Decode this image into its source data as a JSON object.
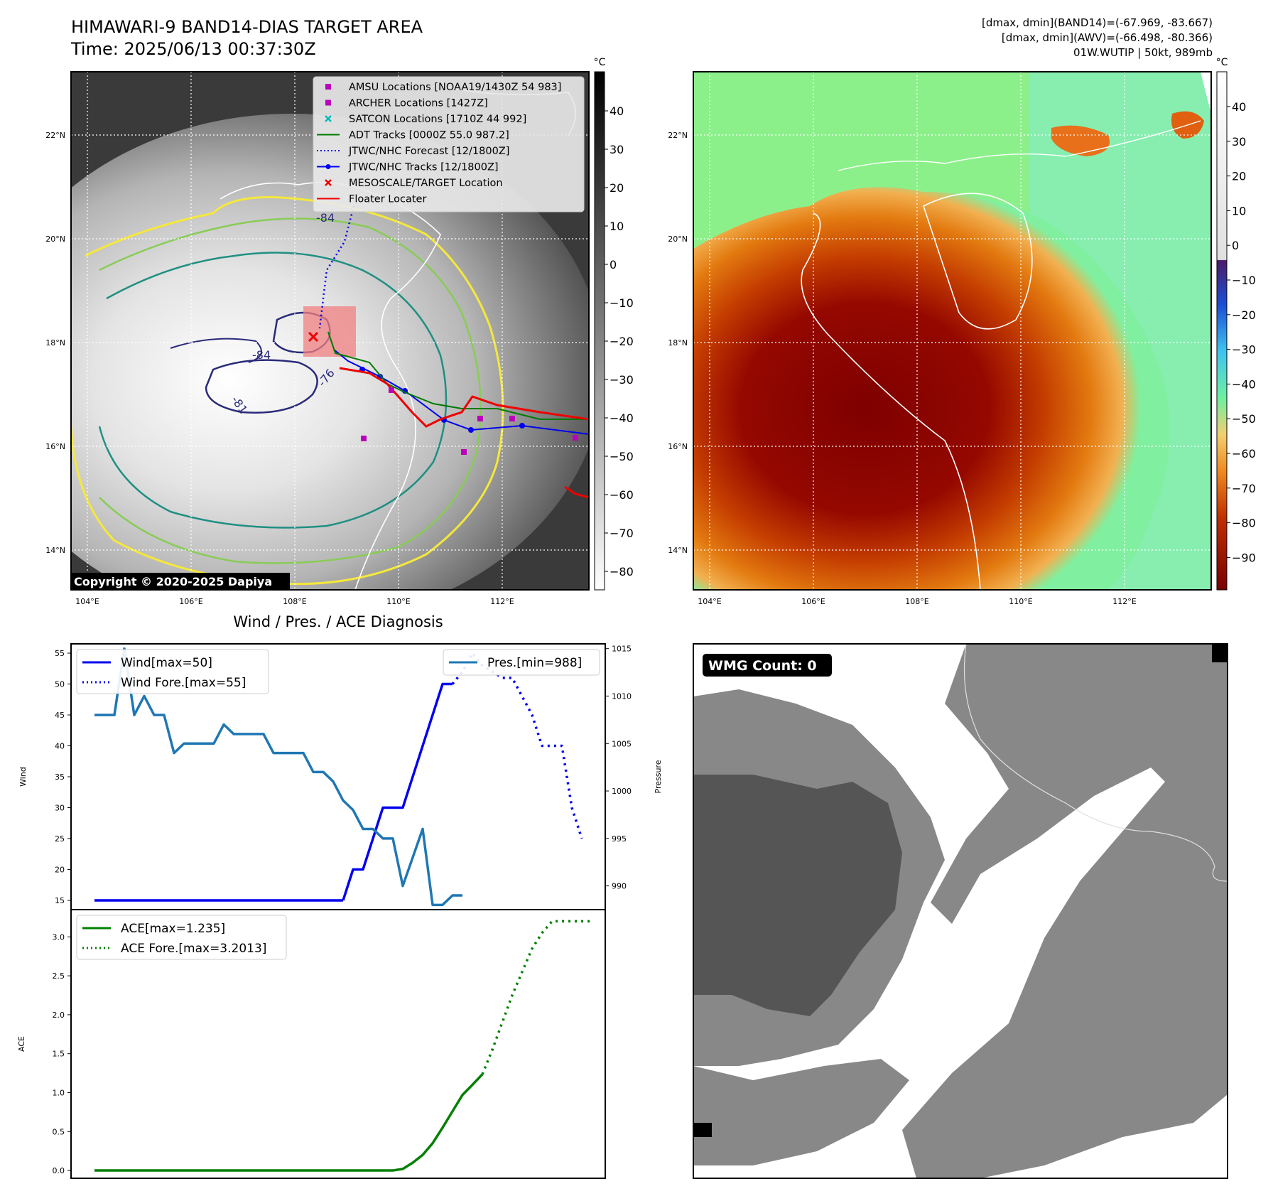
{
  "header": {
    "title_line1": "HIMAWARI-9 BAND14-DIAS TARGET AREA",
    "title_line2": "Time: 2025/06/13 00:37:30Z",
    "info_line1": "[dmax, dmin](BAND14)=(-67.969, -83.667)",
    "info_line2": "[dmax, dmin](AWV)=(-66.498, -80.366)",
    "info_line3": "01W.WUTIP | 50kt, 989mb"
  },
  "colors": {
    "contour_yellow": "#f5e83a",
    "contour_lightgreen": "#88cc55",
    "contour_teal": "#1f8f82",
    "contour_navy": "#2a2a7a",
    "track_blue": "#0000ee",
    "adt_green": "#007a00",
    "floater_red": "#ee0000",
    "amsu_magenta": "#bb00bb",
    "satcon_cyan": "#00bbbb",
    "pres_line": "#1f77b4",
    "ace_line": "#008000",
    "wmg_dark": "#555555",
    "wmg_mid": "#888888"
  },
  "map": {
    "lon_ticks": [
      "104°E",
      "106°E",
      "108°E",
      "110°E",
      "112°E"
    ],
    "lat_ticks": [
      "22°N",
      "20°N",
      "18°N",
      "16°N",
      "14°N"
    ],
    "copyright": "Copyright © 2020-2025 Dapiya",
    "contour_labels": [
      "-84",
      "-81",
      "-76",
      "-84"
    ],
    "legend": [
      {
        "label": "AMSU Locations [NOAA19/1430Z 54 983]",
        "marker": "square",
        "color": "#bb00bb"
      },
      {
        "label": "ARCHER Locations [1427Z]",
        "marker": "square",
        "color": "#bb00bb"
      },
      {
        "label": "SATCON Locations [1710Z 44 992]",
        "marker": "x",
        "color": "#00bbbb"
      },
      {
        "label": "ADT Tracks [0000Z 55.0 987.2]",
        "marker": "line",
        "color": "#007a00"
      },
      {
        "label": "JTWC/NHC Forecast [12/1800Z]",
        "marker": "dotted",
        "color": "#0000ee"
      },
      {
        "label": "JTWC/NHC Tracks [12/1800Z]",
        "marker": "line-dot",
        "color": "#0000ee"
      },
      {
        "label": "MESOSCALE/TARGET Location",
        "marker": "x",
        "color": "#ee0000"
      },
      {
        "label": "Floater Locater",
        "marker": "line",
        "color": "#ee0000"
      }
    ]
  },
  "colorbars": {
    "unit": "°C",
    "ir_ticks": [
      "40",
      "30",
      "20",
      "10",
      "0",
      "−10",
      "−20",
      "−30",
      "−40",
      "−50",
      "−60",
      "−70",
      "−80"
    ],
    "awv_ticks": [
      "40",
      "30",
      "20",
      "10",
      "0",
      "−10",
      "−20",
      "−30",
      "−40",
      "−50",
      "−60",
      "−70",
      "−80",
      "−90"
    ]
  },
  "wmg": {
    "label": "WMG Count: 0"
  },
  "chart_data": [
    {
      "type": "line",
      "title": "Wind / Pres. / ACE Diagnosis",
      "ylabel": "Wind",
      "ylabel_right": "Pressure",
      "ylim": [
        13.5,
        56.5
      ],
      "ylim_right": [
        987.5,
        1015.5
      ],
      "yticks": [
        "15",
        "20",
        "25",
        "30",
        "35",
        "40",
        "45",
        "50",
        "55"
      ],
      "yticks_right": [
        "990",
        "995",
        "1000",
        "1005",
        "1010",
        "1015"
      ],
      "series": [
        {
          "name": "Wind[max=50]",
          "axis": "left",
          "style": "solid",
          "color": "#0000ee",
          "x": [
            0,
            1,
            2,
            3,
            4,
            5,
            6,
            7,
            8,
            9,
            10,
            11,
            12,
            13,
            14,
            15,
            16,
            17,
            18,
            19,
            20,
            21,
            22,
            23,
            24,
            25
          ],
          "y": [
            15,
            15,
            15,
            15,
            15,
            15,
            15,
            15,
            15,
            15,
            15,
            15,
            15,
            15,
            15,
            15,
            15,
            15,
            15,
            15,
            15,
            15,
            15,
            15,
            15,
            15
          ]
        },
        {
          "name": "Wind[max=50]",
          "axis": "left",
          "style": "solid",
          "color": "#0000ee",
          "x": [
            25,
            26,
            27,
            28,
            29,
            30,
            31,
            32,
            33,
            34,
            35,
            36
          ],
          "y": [
            15,
            20,
            20,
            25,
            30,
            30,
            30,
            35,
            40,
            45,
            50,
            50
          ]
        },
        {
          "name": "Wind Fore.[max=55]",
          "axis": "left",
          "style": "dotted",
          "color": "#0000ee",
          "x": [
            36,
            37,
            38,
            39,
            40,
            41,
            42,
            43,
            44,
            45,
            46,
            47,
            48,
            49
          ],
          "y": [
            50,
            52,
            55,
            53,
            52,
            51,
            51,
            48,
            45,
            40,
            40,
            40,
            30,
            25
          ]
        },
        {
          "name": "Pres.[min=988]",
          "axis": "right",
          "style": "solid",
          "color": "#1f77b4",
          "x": [
            0,
            1,
            2,
            3,
            4,
            5,
            6,
            7,
            8,
            9,
            10,
            11,
            12,
            13,
            14,
            15,
            16,
            17,
            18,
            19,
            20,
            21,
            22,
            23,
            24,
            25,
            26,
            27,
            28,
            29,
            30,
            31,
            32,
            33,
            34,
            35,
            36,
            37
          ],
          "y": [
            1008,
            1008,
            1008,
            1015,
            1008,
            1010,
            1008,
            1008,
            1004,
            1005,
            1005,
            1005,
            1005,
            1007,
            1006,
            1006,
            1006,
            1006,
            1004,
            1004,
            1004,
            1004,
            1002,
            1002,
            1001,
            999,
            998,
            996,
            996,
            995,
            995,
            990,
            993,
            996,
            988,
            988,
            989,
            989
          ]
        }
      ]
    },
    {
      "type": "line",
      "ylabel": "ACE",
      "ylim": [
        -0.1,
        3.35
      ],
      "yticks": [
        "0.0",
        "0.5",
        "1.0",
        "1.5",
        "2.0",
        "2.5",
        "3.0"
      ],
      "series": [
        {
          "name": "ACE[max=1.235]",
          "style": "solid",
          "color": "#008000",
          "x": [
            0,
            5,
            10,
            15,
            20,
            25,
            30,
            31,
            32,
            33,
            34,
            35,
            36,
            37,
            38,
            39
          ],
          "y": [
            0,
            0,
            0,
            0,
            0,
            0,
            0,
            0.02,
            0.1,
            0.2,
            0.35,
            0.55,
            0.76,
            0.97,
            1.1,
            1.235
          ]
        },
        {
          "name": "ACE Fore.[max=3.2013]",
          "style": "dotted",
          "color": "#008000",
          "x": [
            39,
            40,
            41,
            42,
            43,
            44,
            45,
            46,
            47,
            48,
            49,
            50
          ],
          "y": [
            1.235,
            1.55,
            1.9,
            2.25,
            2.55,
            2.85,
            3.05,
            3.2,
            3.2,
            3.2,
            3.2,
            3.2
          ]
        }
      ]
    }
  ]
}
